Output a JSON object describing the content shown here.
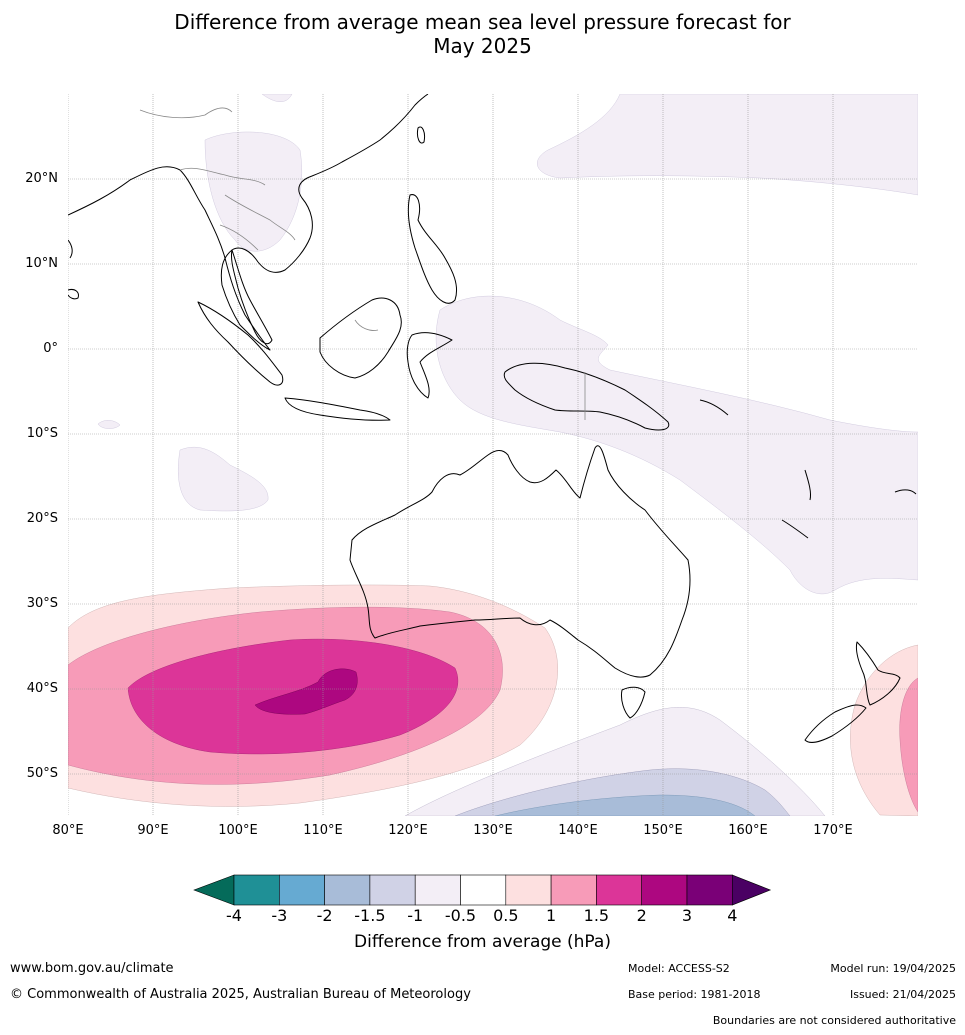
{
  "title": {
    "line1": "Difference from average mean sea level pressure forecast for",
    "line2": "May 2025"
  },
  "map": {
    "lat_labels": [
      "20°N",
      "10°N",
      "0°",
      "10°S",
      "20°S",
      "30°S",
      "40°S",
      "50°S"
    ],
    "lon_labels": [
      "80°E",
      "90°E",
      "100°E",
      "110°E",
      "120°E",
      "130°E",
      "140°E",
      "150°E",
      "160°E",
      "170°E"
    ],
    "land_outline": "coastlines (black), borders (grey)",
    "colors": {
      "pos_05_1": "#fde0e0",
      "pos_1_15": "#f79bb8",
      "pos_15_2": "#dc3598",
      "pos_2_3": "#ad0780",
      "neg_05_1": "#f3eef6",
      "neg_1_15": "#d0d2e6",
      "neg_15_2": "#a8bcd8"
    }
  },
  "colorbar": {
    "ticks": [
      "-4",
      "-3",
      "-2",
      "-1.5",
      "-1",
      "-0.5",
      "0.5",
      "1",
      "1.5",
      "2",
      "3",
      "4"
    ],
    "colors": [
      "#1f9096",
      "#66aad2",
      "#a8bcd8",
      "#d0d2e6",
      "#f3eef6",
      "#ffffff",
      "#fde0e0",
      "#f79bb8",
      "#dc3598",
      "#ad0780",
      "#7a0077"
    ],
    "low_extend_color": "#056b5a",
    "high_extend_color": "#4a0063",
    "label": "Difference from average (hPa)"
  },
  "footer": {
    "website": "www.bom.gov.au/climate",
    "copyright": "© Commonwealth of Australia 2025, Australian Bureau of Meteorology",
    "model": "Model: ACCESS-S2",
    "base_period": "Base period: 1981-2018",
    "model_run": "Model run: 19/04/2025",
    "issued": "Issued: 21/04/2025",
    "disclaimer": "Boundaries are not considered authoritative"
  }
}
